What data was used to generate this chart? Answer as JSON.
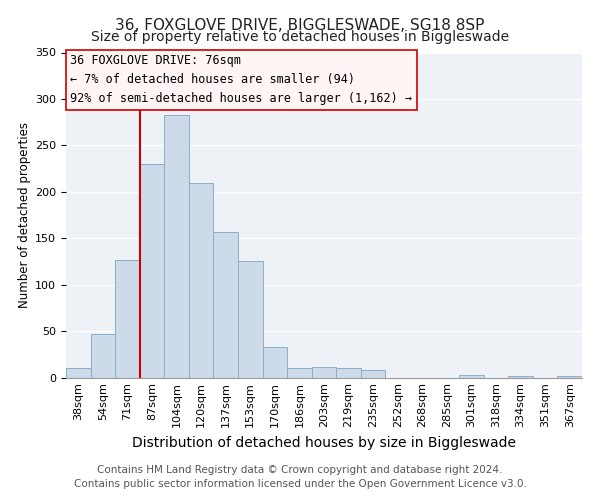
{
  "title": "36, FOXGLOVE DRIVE, BIGGLESWADE, SG18 8SP",
  "subtitle": "Size of property relative to detached houses in Biggleswade",
  "xlabel": "Distribution of detached houses by size in Biggleswade",
  "ylabel": "Number of detached properties",
  "bar_labels": [
    "38sqm",
    "54sqm",
    "71sqm",
    "87sqm",
    "104sqm",
    "120sqm",
    "137sqm",
    "153sqm",
    "170sqm",
    "186sqm",
    "203sqm",
    "219sqm",
    "235sqm",
    "252sqm",
    "268sqm",
    "285sqm",
    "301sqm",
    "318sqm",
    "334sqm",
    "351sqm",
    "367sqm"
  ],
  "bar_values": [
    10,
    47,
    127,
    230,
    283,
    210,
    157,
    126,
    33,
    10,
    11,
    10,
    8,
    0,
    0,
    0,
    3,
    0,
    2,
    0,
    2
  ],
  "bar_color": "#cddaea",
  "bar_edge_color": "#8aaec8",
  "ylim": [
    0,
    350
  ],
  "yticks": [
    0,
    50,
    100,
    150,
    200,
    250,
    300,
    350
  ],
  "vline_index": 2,
  "vline_color": "#cc0000",
  "annotation_title": "36 FOXGLOVE DRIVE: 76sqm",
  "annotation_line1": "← 7% of detached houses are smaller (94)",
  "annotation_line2": "92% of semi-detached houses are larger (1,162) →",
  "annotation_box_facecolor": "#fff5f5",
  "annotation_box_edgecolor": "#cc0000",
  "footer1": "Contains HM Land Registry data © Crown copyright and database right 2024.",
  "footer2": "Contains public sector information licensed under the Open Government Licence v3.0.",
  "background_color": "#ffffff",
  "plot_bg_color": "#eef2f7",
  "grid_color": "#ffffff",
  "title_fontsize": 11,
  "subtitle_fontsize": 10,
  "xlabel_fontsize": 10,
  "ylabel_fontsize": 8.5,
  "tick_fontsize": 8,
  "annotation_fontsize": 8.5,
  "footer_fontsize": 7.5
}
